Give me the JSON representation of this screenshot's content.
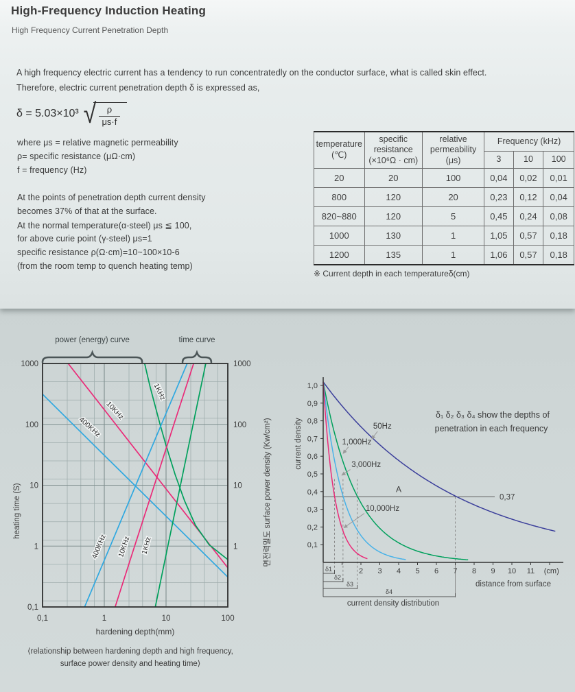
{
  "page": {
    "title": "High-Frequency Induction Heating",
    "subtitle": "High Frequency Current Penetration Depth"
  },
  "intro": {
    "line1": "A high frequency electric current has a tendency to run concentratedly on the conductor surface, what is called skin effect.",
    "line2": "Therefore, electric current penetration depth δ is expressed as,"
  },
  "formula": {
    "lhs": "δ = 5.03×10³",
    "numerator": "ρ",
    "denominator": "μs·f"
  },
  "definitions": [
    "where μs = relative magnetic permeability",
    "ρ= specific resistance (μΩ·cm)",
    "f = frequency (Hz)"
  ],
  "notes": [
    "At the points of penetration depth current density",
    "becomes 37% of that at the surface.",
    "At the normal temperature(α-steel) μs ≦ 100,",
    "for above curie point (γ-steel) μs=1",
    "specific resistance ρ(Ω·cm)=10~100×10-6",
    "(from the room temp to quench heating temp)"
  ],
  "table": {
    "headers": {
      "temperature": [
        "temperature",
        "(℃)"
      ],
      "specific_resistance": [
        "specific",
        "resistance",
        "(×10⁶Ω · cm)"
      ],
      "relative_permeability": [
        "relative",
        "permeability (μs)"
      ],
      "frequency": "Frequency (kHz)",
      "frequency_cols": [
        "3",
        "10",
        "100"
      ]
    },
    "rows": [
      [
        "20",
        "20",
        "100",
        "0,04",
        "0,02",
        "0,01"
      ],
      [
        "800",
        "120",
        "20",
        "0,23",
        "0,12",
        "0,04"
      ],
      [
        "820~880",
        "120",
        "5",
        "0,45",
        "0,24",
        "0,08"
      ],
      [
        "1000",
        "130",
        "1",
        "1,05",
        "0,57",
        "0,18"
      ],
      [
        "1200",
        "135",
        "1",
        "1,06",
        "0,57",
        "0,18"
      ]
    ],
    "caption": "※ Current depth in each temperatureδ(cm)"
  },
  "chart_data": [
    {
      "type": "line",
      "name": "hardening-depth-chart",
      "xscale": "log",
      "yscale": "log",
      "xlim": [
        0.1,
        100
      ],
      "ylim": [
        0.1,
        1000
      ],
      "xlabel": "hardening depth(mm)",
      "ylabel_left": "heating time (S)",
      "ylabel_right": "면전력밀도  surface power density (Kw/cm²)",
      "x_tick_labels": [
        "0,1",
        "1",
        "10",
        "100"
      ],
      "x_tick_values": [
        0.1,
        1,
        10,
        100
      ],
      "y_tick_labels_left": [
        "1000",
        "100",
        "10",
        "1",
        "0,1"
      ],
      "y_tick_values_left": [
        1000,
        100,
        10,
        1,
        0.1
      ],
      "y_tick_labels_right": [
        "1000",
        "100",
        "10",
        "1"
      ],
      "y_tick_values_right": [
        1000,
        100,
        10,
        1
      ],
      "braces": [
        {
          "label": "power (energy) curve",
          "from": 0.1,
          "to": 4.1
        },
        {
          "label": "time curve",
          "from": 18.5,
          "to": 54
        }
      ],
      "series": [
        {
          "name": "power-400KHz",
          "label": "400KHz",
          "color": "#2fa8e0",
          "points": [
            [
              0.1,
              313
            ],
            [
              1,
              31
            ],
            [
              10,
              3.1
            ],
            [
              100,
              0.31
            ]
          ],
          "label_at": [
            0.55,
            85
          ],
          "label_rot": 42
        },
        {
          "name": "power-10KHz",
          "label": "10KHz",
          "color": "#ea2a78",
          "points": [
            [
              0.26,
              1000
            ],
            [
              1,
              174
            ],
            [
              10,
              8.7
            ],
            [
              100,
              0.44
            ]
          ],
          "label_at": [
            1.4,
            160
          ],
          "label_rot": 47
        },
        {
          "name": "power-1KHz",
          "label": "1KHz",
          "color": "#00a05c",
          "points": [
            [
              4.5,
              1000
            ],
            [
              5.5,
              420
            ],
            [
              6.5,
              220
            ],
            [
              8,
              100
            ],
            [
              10,
              45
            ],
            [
              14,
              15
            ],
            [
              20,
              5.5
            ],
            [
              30,
              2.2
            ],
            [
              50,
              1.05
            ],
            [
              100,
              0.6
            ]
          ],
          "label_at": [
            7.3,
            330
          ],
          "label_rot": 64
        },
        {
          "name": "time-400KHz",
          "label": "400KHz",
          "color": "#2fa8e0",
          "points": [
            [
              0.48,
              0.1
            ],
            [
              1.25,
              1
            ],
            [
              3.24,
              10
            ],
            [
              8.4,
              100
            ],
            [
              22,
              1000
            ]
          ],
          "label_at": [
            0.88,
            0.95
          ],
          "label_rot": -68
        },
        {
          "name": "time-10KHz",
          "label": "10KHz",
          "color": "#ea2a78",
          "points": [
            [
              1.5,
              0.1
            ],
            [
              3.1,
              1
            ],
            [
              6.45,
              10
            ],
            [
              13.4,
              100
            ],
            [
              28,
              1000
            ]
          ],
          "label_at": [
            2.25,
            0.95
          ],
          "label_rot": -72
        },
        {
          "name": "time-1KHz",
          "label": "1KHz",
          "color": "#00a05c",
          "points": [
            [
              6.7,
              0.1
            ],
            [
              10.7,
              1
            ],
            [
              17.1,
              10
            ],
            [
              27.4,
              100
            ],
            [
              44,
              1000
            ]
          ],
          "label_at": [
            5.2,
            1.0
          ],
          "label_rot": -75
        }
      ],
      "caption_lines": [
        "⟨relationship between hardening depth and high frequency,",
        "surface power density and heating time⟩"
      ]
    },
    {
      "type": "line",
      "name": "current-density-chart",
      "xscale": "linear",
      "yscale": "linear",
      "xlim": [
        0,
        12.5
      ],
      "ylim": [
        0,
        1.05
      ],
      "xlabel": "distance from surface",
      "x_unit": "(cm)",
      "ylabel": "current density",
      "x_tick_labels": [
        "2",
        "3",
        "4",
        "5",
        "6",
        "7",
        "8",
        "9",
        "10",
        "11"
      ],
      "x_tick_values": [
        2,
        3,
        4,
        5,
        6,
        7,
        8,
        9,
        10,
        11
      ],
      "y_tick_labels": [
        "0,1",
        "0,2",
        "0,3",
        "0,4",
        "0,5",
        "0,6",
        "0,7",
        "0,8",
        "0,9",
        "1,0"
      ],
      "reference_line": {
        "value": 0.37,
        "label": "0,37",
        "point_label": "A"
      },
      "series": [
        {
          "name": "50Hz",
          "label": "50Hz",
          "color": "#3b3f9b",
          "delta": 7.0,
          "x_end": 12.35,
          "label_at": [
            2.65,
            0.756
          ],
          "arrow": [
            [
              2.88,
              0.74
            ],
            [
              2.57,
              0.697
            ]
          ]
        },
        {
          "name": "1000Hz",
          "label": "1,000Hz",
          "color": "#00a05c",
          "delta": 1.8,
          "x_end": 7.7,
          "label_at": [
            1.0,
            0.667
          ],
          "arrow": [
            [
              1.34,
              0.653
            ],
            [
              1.05,
              0.615
            ]
          ]
        },
        {
          "name": "3000Hz",
          "label": "3,000Hz",
          "color": "#49b2e8",
          "delta": 1.05,
          "x_end": 4.4,
          "label_at": [
            1.5,
            0.539
          ],
          "arrow": [
            [
              1.44,
              0.525
            ],
            [
              0.98,
              0.492
            ]
          ]
        },
        {
          "name": "10000Hz",
          "label": "10,000Hz",
          "color": "#ea2a78",
          "delta": 0.6,
          "x_end": 2.35,
          "label_at": [
            2.25,
            0.291
          ],
          "arrow": [
            [
              2.18,
              0.277
            ],
            [
              1.09,
              0.195
            ]
          ]
        }
      ],
      "depth_markers": [
        {
          "label": "δ1",
          "x": 0.6
        },
        {
          "label": "δ2",
          "x": 1.05
        },
        {
          "label": "δ3",
          "x": 1.8
        },
        {
          "label": "δ4",
          "x": 7.0
        }
      ],
      "note_lines": [
        "δ₁ δ₂ δ₃ δ₄ show the depths of",
        "penetration in each frequency"
      ],
      "caption": "current density distribution"
    }
  ]
}
